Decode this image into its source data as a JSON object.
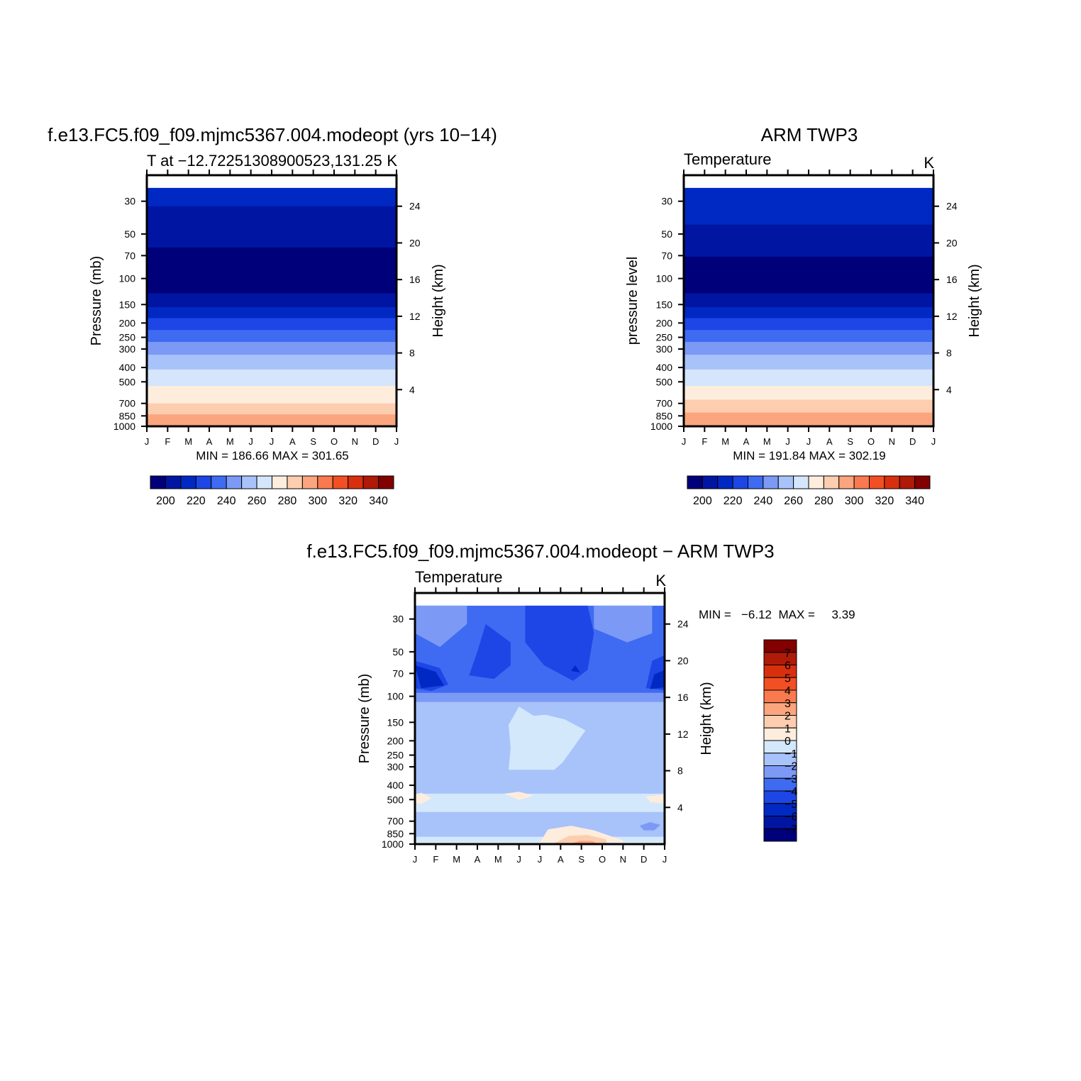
{
  "chart_data": [
    {
      "type": "heatmap",
      "id": "model",
      "title": "f.e13.FC5.f09_f09.mjmc5367.004.modeopt (yrs 10−14)",
      "left_subtitle": "T at −12.72251308900523,131.25",
      "right_subtitle": "K",
      "ylabel": "Pressure (mb)",
      "y2label": "Height (km)",
      "x_ticks": [
        "J",
        "F",
        "M",
        "A",
        "M",
        "J",
        "J",
        "A",
        "S",
        "O",
        "N",
        "D",
        "J"
      ],
      "y_ticks": [
        30,
        50,
        70,
        100,
        150,
        200,
        250,
        300,
        400,
        500,
        700,
        850,
        1000
      ],
      "y2_ticks": [
        24,
        20,
        16,
        12,
        8,
        4
      ],
      "stats": "MIN = 186.66 MAX = 301.65",
      "colorbar_labels": [
        "200",
        "220",
        "240",
        "260",
        "280",
        "300",
        "320",
        "340"
      ],
      "contour_levels": [
        190,
        200,
        210,
        220,
        230,
        240,
        250,
        260,
        270,
        280,
        290,
        300,
        310,
        320,
        330,
        340,
        350
      ],
      "bands": [
        {
          "value": 215,
          "from": 24,
          "to": 26
        },
        {
          "value": 205,
          "from": 19.5,
          "to": 24
        },
        {
          "value": 195,
          "from": 14.5,
          "to": 19.5
        },
        {
          "value": 205,
          "from": 13,
          "to": 14.5
        },
        {
          "value": 215,
          "from": 11.8,
          "to": 13
        },
        {
          "value": 225,
          "from": 10.5,
          "to": 11.8
        },
        {
          "value": 235,
          "from": 9.2,
          "to": 10.5
        },
        {
          "value": 245,
          "from": 7.8,
          "to": 9.2
        },
        {
          "value": 255,
          "from": 6.2,
          "to": 7.8
        },
        {
          "value": 265,
          "from": 4.4,
          "to": 6.2
        },
        {
          "value": 275,
          "from": 2.5,
          "to": 4.4
        },
        {
          "value": 285,
          "from": 1.3,
          "to": 2.5
        },
        {
          "value": 295,
          "from": 0.1,
          "to": 1.3
        },
        {
          "value": 305,
          "from": 0,
          "to": 0.1
        }
      ]
    },
    {
      "type": "heatmap",
      "id": "obs",
      "title": "ARM TWP3",
      "left_subtitle": "Temperature",
      "right_subtitle": "K",
      "ylabel": "pressure level",
      "y2label": "Height (km)",
      "x_ticks": [
        "J",
        "F",
        "M",
        "A",
        "M",
        "J",
        "J",
        "A",
        "S",
        "O",
        "N",
        "D",
        "J"
      ],
      "y_ticks": [
        30,
        50,
        70,
        100,
        150,
        200,
        250,
        300,
        400,
        500,
        700,
        850,
        1000
      ],
      "y2_ticks": [
        24,
        20,
        16,
        12,
        8,
        4
      ],
      "stats": "MIN = 191.84 MAX = 302.19",
      "colorbar_labels": [
        "200",
        "220",
        "240",
        "260",
        "280",
        "300",
        "320",
        "340"
      ],
      "contour_levels": [
        190,
        200,
        210,
        220,
        230,
        240,
        250,
        260,
        270,
        280,
        290,
        300,
        310,
        320,
        330,
        340,
        350
      ],
      "bands": [
        {
          "value": 215,
          "from": 22,
          "to": 26
        },
        {
          "value": 205,
          "from": 18.5,
          "to": 22
        },
        {
          "value": 195,
          "from": 14.5,
          "to": 18.5
        },
        {
          "value": 205,
          "from": 13,
          "to": 14.5
        },
        {
          "value": 215,
          "from": 11.8,
          "to": 13
        },
        {
          "value": 225,
          "from": 10.5,
          "to": 11.8
        },
        {
          "value": 235,
          "from": 9.2,
          "to": 10.5
        },
        {
          "value": 245,
          "from": 7.8,
          "to": 9.2
        },
        {
          "value": 255,
          "from": 6.2,
          "to": 7.8
        },
        {
          "value": 265,
          "from": 4.4,
          "to": 6.2
        },
        {
          "value": 275,
          "from": 2.9,
          "to": 4.4
        },
        {
          "value": 285,
          "from": 1.5,
          "to": 2.9
        },
        {
          "value": 295,
          "from": 0.1,
          "to": 1.5
        },
        {
          "value": 305,
          "from": 0,
          "to": 0.1
        }
      ]
    },
    {
      "type": "heatmap",
      "id": "diff",
      "title": "f.e13.FC5.f09_f09.mjmc5367.004.modeopt − ARM TWP3",
      "left_subtitle": "Temperature",
      "right_subtitle": "K",
      "ylabel": "Pressure (mb)",
      "y2label": "Height (km)",
      "x_ticks": [
        "J",
        "F",
        "M",
        "A",
        "M",
        "J",
        "J",
        "A",
        "S",
        "O",
        "N",
        "D",
        "J"
      ],
      "y_ticks": [
        30,
        50,
        70,
        100,
        150,
        200,
        250,
        300,
        400,
        500,
        700,
        850,
        1000
      ],
      "y2_ticks": [
        24,
        20,
        16,
        12,
        8,
        4
      ],
      "stats": "MIN =   −6.12  MAX =     3.39",
      "colorbar_labels": [
        "7",
        "6",
        "5",
        "4",
        "3",
        "2",
        "1",
        "0",
        "−1",
        "−2",
        "−3",
        "−4",
        "−5",
        "−6",
        "−7"
      ],
      "contour_levels": [
        -8,
        -7,
        -6,
        -5,
        -4,
        -3,
        -2,
        -1,
        0,
        1,
        2,
        3,
        4,
        5,
        6,
        7,
        8
      ],
      "bands": [
        {
          "value": -3.5,
          "from": 16.5,
          "to": 26
        },
        {
          "value": -2.5,
          "from": 15.5,
          "to": 16.5
        },
        {
          "value": -1.5,
          "from": 5.5,
          "to": 15.5
        },
        {
          "value": -0.5,
          "from": 3.5,
          "to": 5.5
        },
        {
          "value": -1.5,
          "from": 0.8,
          "to": 3.5
        },
        {
          "value": -0.5,
          "from": 0.2,
          "to": 0.8
        }
      ],
      "patches": [
        {
          "value": -2.5,
          "points": [
            [
              0,
              26
            ],
            [
              0,
              23
            ],
            [
              1.2,
              21.5
            ],
            [
              2.5,
              24
            ],
            [
              2.5,
              26
            ]
          ]
        },
        {
          "value": -2.5,
          "points": [
            [
              8.6,
              26
            ],
            [
              8.6,
              23.5
            ],
            [
              10.2,
              22
            ],
            [
              11.4,
              23
            ],
            [
              11.4,
              26
            ]
          ]
        },
        {
          "value": -4.5,
          "points": [
            [
              5.3,
              26
            ],
            [
              8.3,
              26
            ],
            [
              8.6,
              23
            ],
            [
              8.3,
              19
            ],
            [
              7.6,
              17.8
            ],
            [
              6.2,
              19.5
            ],
            [
              5.3,
              22
            ]
          ]
        },
        {
          "value": -4.5,
          "points": [
            [
              3.4,
              24
            ],
            [
              4.6,
              22
            ],
            [
              4.6,
              19.5
            ],
            [
              3.8,
              18
            ],
            [
              2.6,
              18.4
            ],
            [
              3,
              21
            ]
          ]
        },
        {
          "value": -4.5,
          "points": [
            [
              0,
              20
            ],
            [
              1.2,
              19.2
            ],
            [
              1.6,
              17.4
            ],
            [
              0.8,
              16.7
            ],
            [
              0,
              17
            ]
          ]
        },
        {
          "value": -4.5,
          "points": [
            [
              11.4,
              20
            ],
            [
              12,
              20.6
            ],
            [
              12,
              16.8
            ],
            [
              11.1,
              17
            ]
          ]
        },
        {
          "value": -5.5,
          "points": [
            [
              0,
              19.5
            ],
            [
              1,
              18.8
            ],
            [
              1.4,
              17.3
            ],
            [
              0.3,
              17
            ]
          ]
        },
        {
          "value": -5.5,
          "points": [
            [
              11.5,
              18.5
            ],
            [
              12,
              19
            ],
            [
              12,
              17.1
            ],
            [
              11.3,
              16.9
            ]
          ]
        },
        {
          "value": -5.5,
          "points": [
            [
              7.7,
              19.5
            ],
            [
              7.95,
              18.7
            ],
            [
              7.5,
              18.9
            ]
          ]
        },
        {
          "value": -0.5,
          "points": [
            [
              4.5,
              13
            ],
            [
              5,
              15
            ],
            [
              5.7,
              14
            ],
            [
              6.3,
              14.1
            ],
            [
              7.2,
              13.6
            ],
            [
              8.2,
              12.4
            ],
            [
              7.1,
              8.9
            ],
            [
              6.7,
              8.1
            ],
            [
              4.5,
              8.1
            ],
            [
              4.6,
              10.5
            ]
          ]
        },
        {
          "value": 0.5,
          "points": [
            [
              0,
              5.4
            ],
            [
              0.3,
              5.6
            ],
            [
              0.8,
              5
            ],
            [
              0.3,
              4.4
            ],
            [
              0,
              4.5
            ]
          ]
        },
        {
          "value": 0.5,
          "points": [
            [
              4.3,
              5.5
            ],
            [
              5,
              5.7
            ],
            [
              5.7,
              5.3
            ],
            [
              5,
              4.8
            ]
          ]
        },
        {
          "value": 0.5,
          "points": [
            [
              11.1,
              5.2
            ],
            [
              12,
              5.4
            ],
            [
              12,
              4.4
            ],
            [
              11.3,
              4.6
            ]
          ]
        },
        {
          "value": -2.5,
          "points": [
            [
              10.8,
              2
            ],
            [
              11.3,
              2.4
            ],
            [
              11.8,
              2.1
            ],
            [
              11.5,
              1.5
            ],
            [
              11,
              1.5
            ]
          ]
        },
        {
          "value": 0.5,
          "points": [
            [
              6,
              0.2
            ],
            [
              6.4,
              1.6
            ],
            [
              7.5,
              2
            ],
            [
              8.6,
              1.5
            ],
            [
              10,
              0.4
            ],
            [
              10,
              0.2
            ]
          ]
        },
        {
          "value": 1.5,
          "points": [
            [
              6.7,
              0.1
            ],
            [
              7.4,
              0.9
            ],
            [
              8.3,
              1
            ],
            [
              9.2,
              0.5
            ],
            [
              9.2,
              0.1
            ]
          ]
        },
        {
          "value": 2.5,
          "points": [
            [
              7.5,
              0.05
            ],
            [
              7.9,
              0.35
            ],
            [
              8.5,
              0.35
            ],
            [
              8.8,
              0.05
            ]
          ]
        }
      ]
    }
  ]
}
